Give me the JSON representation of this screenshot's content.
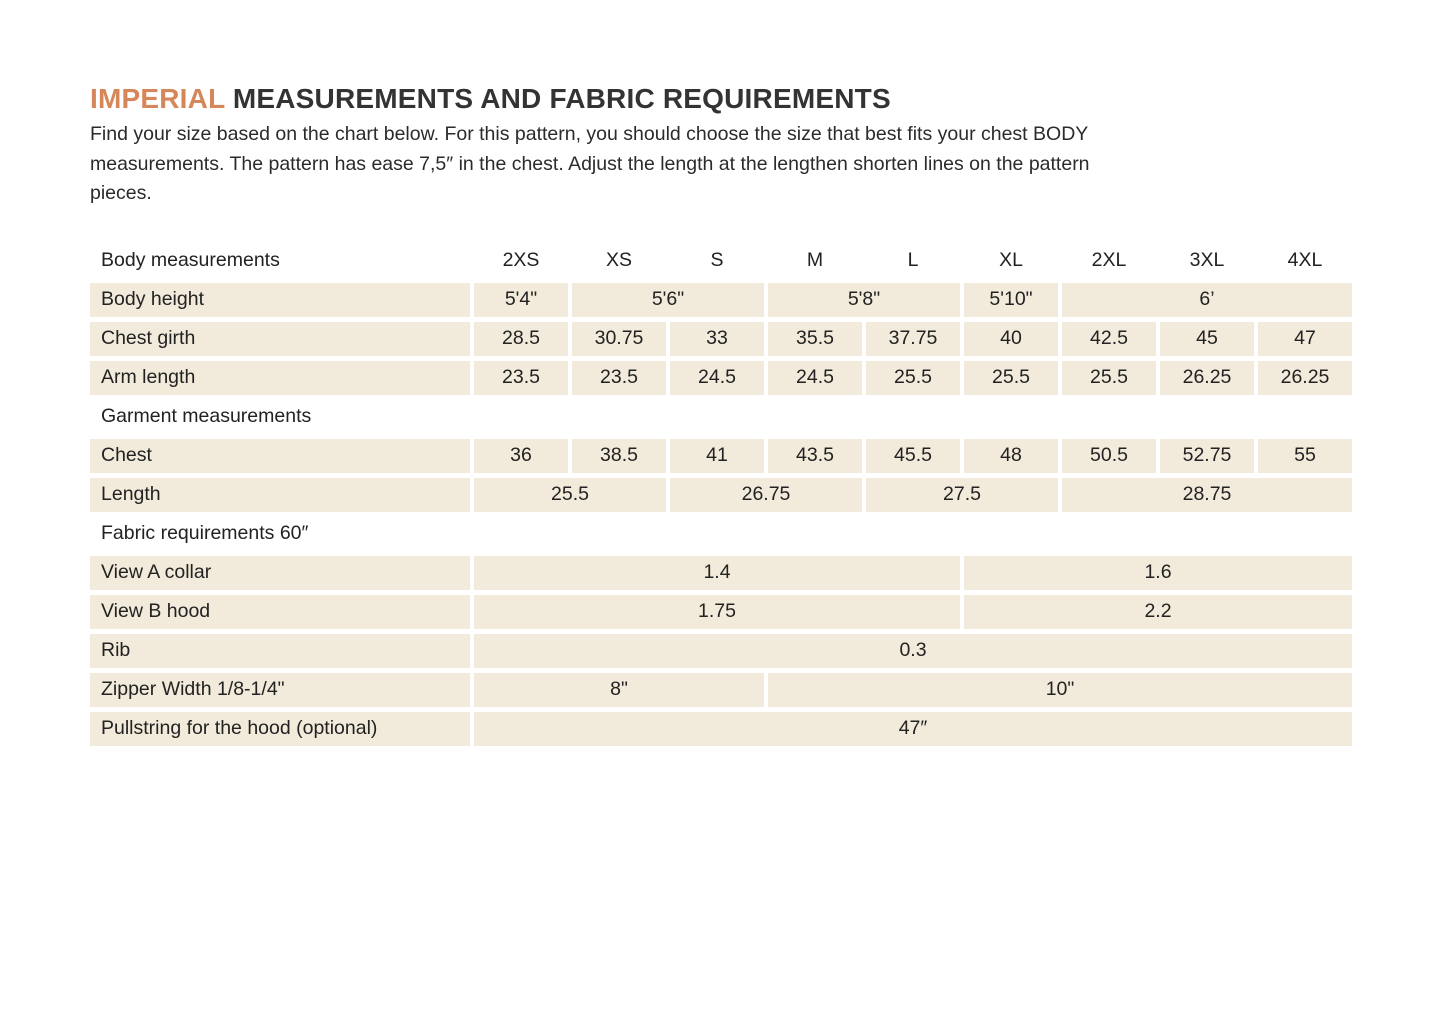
{
  "colors": {
    "accent": "#d6875a",
    "cell_beige": "#f2ebdb",
    "title_text": "#333333",
    "body_text": "#2b2b2b"
  },
  "header": {
    "title_accent": "IMPERIAL",
    "title_rest": " MEASUREMENTS AND FABRIC REQUIREMENTS",
    "intro": "Find your size based on the chart below. For this pattern, you should choose the size that best fits your chest BODY\nmeasurements. The pattern has ease 7,5″ in the chest.  Adjust the length at the lengthen shorten lines on the pattern\npieces."
  },
  "table": {
    "header_label": "Body measurements",
    "size_headers": [
      "2XS",
      "XS",
      "S",
      "M",
      "L",
      "XL",
      "2XL",
      "3XL",
      "4XL"
    ],
    "rows": [
      {
        "type": "data",
        "label": "Body height",
        "cells": [
          {
            "span": 1,
            "value": "5'4\""
          },
          {
            "span": 2,
            "value": "5'6\""
          },
          {
            "span": 2,
            "value": "5'8\""
          },
          {
            "span": 1,
            "value": "5'10\""
          },
          {
            "span": 3,
            "value": "6’"
          }
        ]
      },
      {
        "type": "data",
        "label": "Chest girth",
        "cells": [
          {
            "span": 1,
            "value": "28.5"
          },
          {
            "span": 1,
            "value": "30.75"
          },
          {
            "span": 1,
            "value": "33"
          },
          {
            "span": 1,
            "value": "35.5"
          },
          {
            "span": 1,
            "value": "37.75"
          },
          {
            "span": 1,
            "value": "40"
          },
          {
            "span": 1,
            "value": "42.5"
          },
          {
            "span": 1,
            "value": "45"
          },
          {
            "span": 1,
            "value": "47"
          }
        ]
      },
      {
        "type": "data",
        "label": "Arm length",
        "cells": [
          {
            "span": 1,
            "value": "23.5"
          },
          {
            "span": 1,
            "value": "23.5"
          },
          {
            "span": 1,
            "value": "24.5"
          },
          {
            "span": 1,
            "value": "24.5"
          },
          {
            "span": 1,
            "value": "25.5"
          },
          {
            "span": 1,
            "value": "25.5"
          },
          {
            "span": 1,
            "value": "25.5"
          },
          {
            "span": 1,
            "value": "26.25"
          },
          {
            "span": 1,
            "value": "26.25"
          }
        ]
      },
      {
        "type": "section",
        "label": "Garment measurements"
      },
      {
        "type": "data",
        "label": "Chest",
        "cells": [
          {
            "span": 1,
            "value": "36"
          },
          {
            "span": 1,
            "value": "38.5"
          },
          {
            "span": 1,
            "value": "41"
          },
          {
            "span": 1,
            "value": "43.5"
          },
          {
            "span": 1,
            "value": "45.5"
          },
          {
            "span": 1,
            "value": "48"
          },
          {
            "span": 1,
            "value": "50.5"
          },
          {
            "span": 1,
            "value": "52.75"
          },
          {
            "span": 1,
            "value": "55"
          }
        ]
      },
      {
        "type": "data",
        "label": "Length",
        "cells": [
          {
            "span": 2,
            "value": "25.5"
          },
          {
            "span": 2,
            "value": "26.75"
          },
          {
            "span": 2,
            "value": "27.5"
          },
          {
            "span": 3,
            "value": "28.75"
          }
        ]
      },
      {
        "type": "section",
        "label": "Fabric requirements 60″"
      },
      {
        "type": "data",
        "label": "View A collar",
        "cells": [
          {
            "span": 5,
            "value": "1.4"
          },
          {
            "span": 4,
            "value": "1.6"
          }
        ]
      },
      {
        "type": "data",
        "label": "View B hood",
        "cells": [
          {
            "span": 5,
            "value": "1.75"
          },
          {
            "span": 4,
            "value": "2.2"
          }
        ]
      },
      {
        "type": "data",
        "label": "Rib",
        "cells": [
          {
            "span": 9,
            "value": "0.3"
          }
        ]
      },
      {
        "type": "data",
        "label": "Zipper Width 1/8-1/4\"",
        "cells": [
          {
            "span": 3,
            "value": "8\""
          },
          {
            "span": 6,
            "value": "10\""
          }
        ]
      },
      {
        "type": "data",
        "label": "Pullstring for the hood (optional)",
        "cells": [
          {
            "span": 9,
            "value": "47″"
          }
        ]
      }
    ]
  }
}
